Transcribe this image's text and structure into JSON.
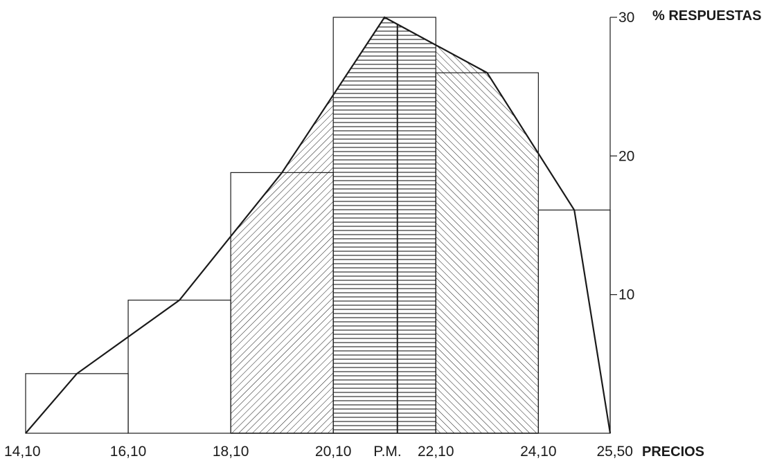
{
  "chart_data": {
    "type": "bar",
    "title": "",
    "xlabel": "PRECIOS",
    "ylabel": "% RESPUESTAS",
    "x_ticks": [
      {
        "value": 14.1,
        "label": "14,10"
      },
      {
        "value": 16.1,
        "label": "16,10"
      },
      {
        "value": 18.1,
        "label": "18,10"
      },
      {
        "value": 20.1,
        "label": "20,10"
      },
      {
        "value": 21.35,
        "label": "P.M."
      },
      {
        "value": 22.1,
        "label": "22,10"
      },
      {
        "value": 24.1,
        "label": "24,10"
      },
      {
        "value": 25.5,
        "label": "25,50"
      }
    ],
    "y_ticks": [
      {
        "value": 10,
        "label": "10"
      },
      {
        "value": 20,
        "label": "20"
      },
      {
        "value": 30,
        "label": "30"
      }
    ],
    "xlim": [
      14.1,
      25.5
    ],
    "ylim": [
      0,
      30
    ],
    "bins": [
      {
        "from": 14.1,
        "to": 16.1,
        "value": 4.3
      },
      {
        "from": 16.1,
        "to": 18.1,
        "value": 9.6
      },
      {
        "from": 18.1,
        "to": 20.1,
        "value": 18.8
      },
      {
        "from": 20.1,
        "to": 22.1,
        "value": 30.0
      },
      {
        "from": 22.1,
        "to": 24.1,
        "value": 26.0
      },
      {
        "from": 24.1,
        "to": 25.5,
        "value": 16.1
      }
    ],
    "polygon": [
      {
        "x": 14.1,
        "y": 0
      },
      {
        "x": 15.1,
        "y": 4.3
      },
      {
        "x": 17.1,
        "y": 9.6
      },
      {
        "x": 19.1,
        "y": 18.8
      },
      {
        "x": 21.1,
        "y": 30.0
      },
      {
        "x": 23.1,
        "y": 26.0
      },
      {
        "x": 24.8,
        "y": 16.1
      },
      {
        "x": 25.5,
        "y": 0
      }
    ],
    "shaded_ranges": [
      {
        "from": 18.1,
        "to": 20.1,
        "pattern": "diagonal-right"
      },
      {
        "from": 20.1,
        "to": 22.1,
        "pattern": "horizontal"
      },
      {
        "from": 22.1,
        "to": 24.1,
        "pattern": "diagonal-left"
      }
    ],
    "marker": {
      "x": 21.35,
      "label": "P.M."
    },
    "grid": false,
    "colors": {
      "ink": "#1a1a1a",
      "background": "#ffffff"
    }
  }
}
